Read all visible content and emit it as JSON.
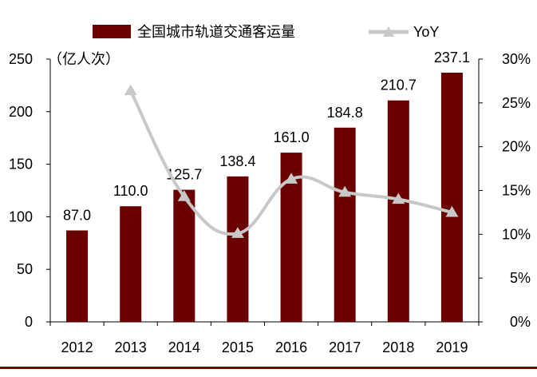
{
  "colors": {
    "bar": "#6b0000",
    "line": "#c8c8c8",
    "axis": "#000000",
    "rule": "#7a0000"
  },
  "chart_data": {
    "type": "bar",
    "categories": [
      "2012",
      "2013",
      "2014",
      "2015",
      "2016",
      "2017",
      "2018",
      "2019"
    ],
    "series": [
      {
        "name": "全国城市轨道交通客运量",
        "type": "bar",
        "axis": "left",
        "values": [
          87.0,
          110.0,
          125.7,
          138.4,
          161.0,
          184.8,
          210.7,
          237.1
        ],
        "labels": [
          "87.0",
          "110.0",
          "125.7",
          "138.4",
          "161.0",
          "184.8",
          "210.7",
          "237.1"
        ]
      },
      {
        "name": "YoY",
        "type": "line",
        "axis": "right",
        "smooth": true,
        "marker": "triangle",
        "values": [
          null,
          26.4,
          14.3,
          10.1,
          16.3,
          14.8,
          14.0,
          12.5
        ]
      }
    ],
    "ylabel": "（亿人次）",
    "ylim": [
      0,
      250
    ],
    "yticks": [
      "0",
      "50",
      "100",
      "150",
      "200",
      "250"
    ],
    "y2lim": [
      0,
      30
    ],
    "y2ticks": [
      "0%",
      "5%",
      "10%",
      "15%",
      "20%",
      "25%",
      "30%"
    ],
    "legend_position": "top",
    "grid": false
  }
}
